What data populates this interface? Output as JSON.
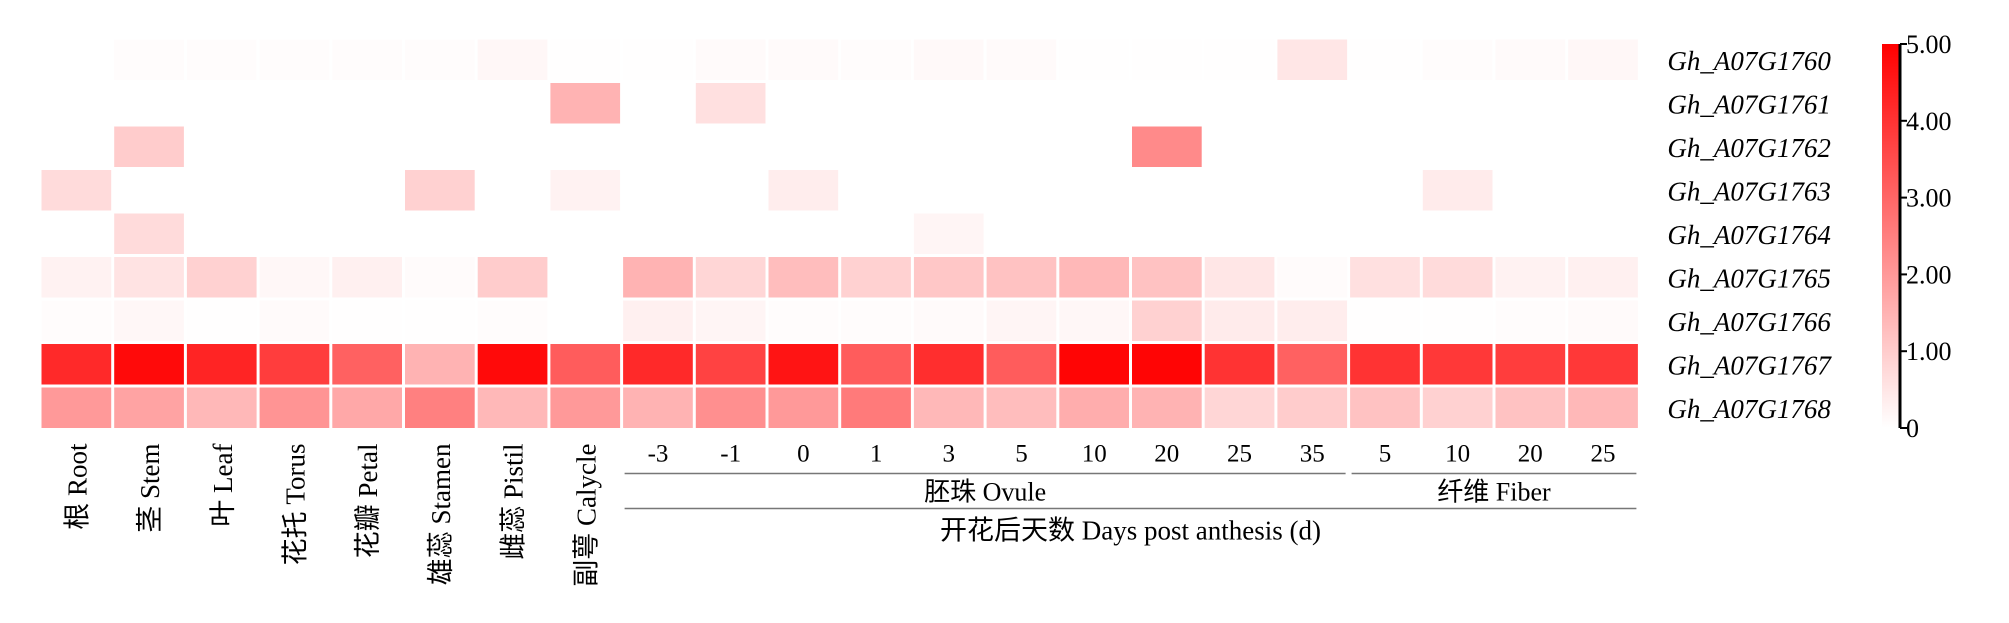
{
  "chart_data": {
    "type": "heatmap",
    "title": "",
    "colormap": {
      "low": "#ffffff",
      "high": "#ff0000"
    },
    "range": [
      0,
      5
    ],
    "colorbar_ticks": [
      "0",
      "1.00",
      "2.00",
      "3.00",
      "4.00",
      "5.00"
    ],
    "rows": [
      "Gh_A07G1760",
      "Gh_A07G1761",
      "Gh_A07G1762",
      "Gh_A07G1763",
      "Gh_A07G1764",
      "Gh_A07G1765",
      "Gh_A07G1766",
      "Gh_A07G1767",
      "Gh_A07G1768"
    ],
    "columns": [
      "根 Root",
      "茎 Stem",
      "叶 Leaf",
      "花托 Torus",
      "花瓣 Petal",
      "雄蕊 Stamen",
      "雌蕊 Pistil",
      "副萼 Calycle",
      "-3",
      "-1",
      "0",
      "1",
      "3",
      "5",
      "10",
      "20",
      "25",
      "35",
      "5",
      "10",
      "20",
      "25"
    ],
    "tissue_column_count": 8,
    "groups": [
      {
        "label": "胚珠 Ovule",
        "start": 8,
        "end": 17
      },
      {
        "label": "纤维 Fiber",
        "start": 18,
        "end": 21
      }
    ],
    "xlabel": "开花后天数 Days post anthesis (d)",
    "values": [
      [
        0.0,
        0.05,
        0.05,
        0.05,
        0.05,
        0.05,
        0.15,
        0.02,
        0.02,
        0.1,
        0.1,
        0.05,
        0.12,
        0.1,
        0.02,
        0.02,
        0.02,
        0.5,
        0.02,
        0.05,
        0.1,
        0.15
      ],
      [
        0.0,
        0.0,
        0.0,
        0.0,
        0.0,
        0.0,
        0.0,
        1.5,
        0.0,
        0.6,
        0.0,
        0.0,
        0.0,
        0.0,
        0.0,
        0.0,
        0.0,
        0.0,
        0.0,
        0.0,
        0.0,
        0.0
      ],
      [
        0.0,
        1.0,
        0.0,
        0.0,
        0.0,
        0.0,
        0.0,
        0.0,
        0.0,
        0.0,
        0.0,
        0.0,
        0.0,
        0.0,
        0.0,
        2.3,
        0.0,
        0.0,
        0.0,
        0.0,
        0.0,
        0.0
      ],
      [
        0.7,
        0.0,
        0.0,
        0.0,
        0.0,
        0.9,
        0.0,
        0.25,
        0.0,
        0.0,
        0.35,
        0.0,
        0.0,
        0.0,
        0.0,
        0.0,
        0.0,
        0.0,
        0.0,
        0.4,
        0.0,
        0.0
      ],
      [
        0.0,
        0.7,
        0.0,
        0.0,
        0.0,
        0.0,
        0.0,
        0.0,
        0.0,
        0.0,
        0.0,
        0.0,
        0.2,
        0.0,
        0.0,
        0.0,
        0.0,
        0.0,
        0.0,
        0.0,
        0.0,
        0.0
      ],
      [
        0.25,
        0.55,
        0.9,
        0.15,
        0.3,
        0.08,
        1.0,
        0.0,
        1.5,
        0.8,
        1.3,
        0.9,
        1.1,
        1.2,
        1.4,
        1.2,
        0.5,
        0.08,
        0.6,
        0.7,
        0.25,
        0.3
      ],
      [
        0.05,
        0.15,
        0.02,
        0.1,
        0.02,
        0.02,
        0.05,
        0.0,
        0.3,
        0.2,
        0.05,
        0.05,
        0.1,
        0.2,
        0.15,
        0.9,
        0.4,
        0.35,
        0.02,
        0.02,
        0.05,
        0.1
      ],
      [
        4.2,
        4.8,
        4.3,
        3.8,
        3.1,
        1.5,
        4.8,
        3.2,
        4.2,
        3.7,
        4.6,
        3.2,
        4.1,
        3.2,
        4.9,
        4.9,
        4.0,
        3.1,
        4.0,
        3.9,
        3.8,
        3.9
      ],
      [
        2.0,
        1.8,
        1.4,
        2.1,
        1.7,
        2.5,
        1.4,
        2.0,
        1.5,
        2.2,
        2.0,
        2.6,
        1.4,
        1.3,
        1.6,
        1.5,
        0.8,
        1.0,
        1.2,
        0.9,
        1.2,
        1.4
      ]
    ]
  }
}
